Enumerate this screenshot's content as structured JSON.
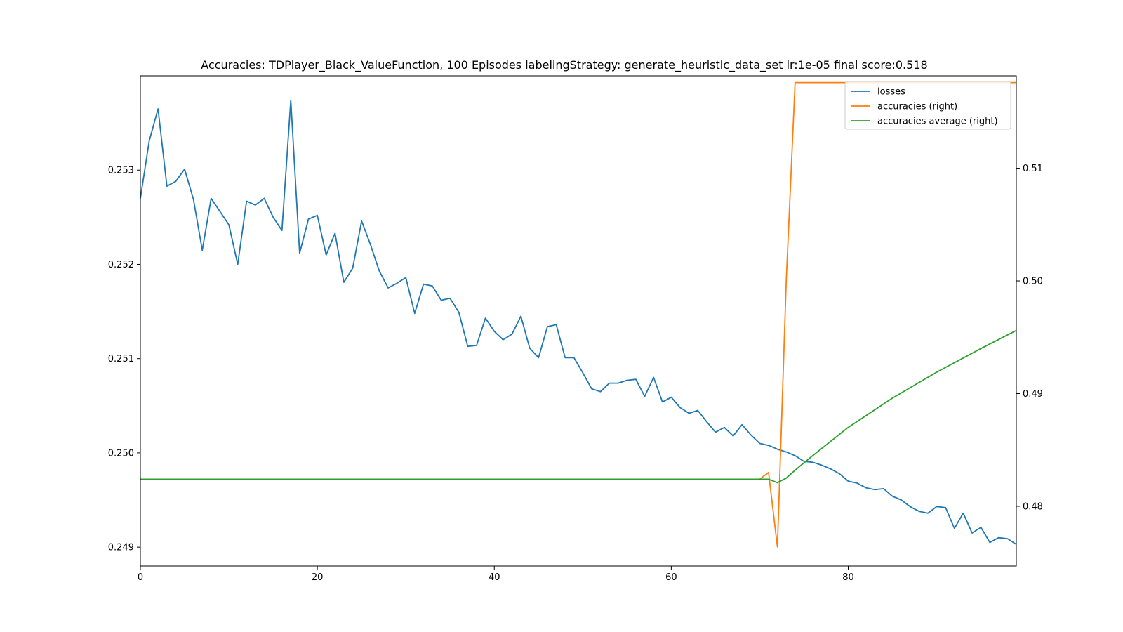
{
  "chart_data": {
    "type": "line",
    "title": "Accuracies: TDPlayer_Black_ValueFunction, 100 Episodes labelingStrategy: generate_heuristic_data_set lr:1e-05 final score:0.518",
    "xlabel": "",
    "ylabel": "",
    "xlim": [
      0,
      99
    ],
    "ylim_left": [
      0.2488,
      0.254
    ],
    "ylim_right": [
      0.4747,
      0.5182
    ],
    "x_ticks": [
      0,
      20,
      40,
      60,
      80
    ],
    "y_left_ticks": [
      "0.249",
      "0.250",
      "0.251",
      "0.252",
      "0.253"
    ],
    "y_right_ticks": [
      "0.48",
      "0.49",
      "0.50",
      "0.51"
    ],
    "grid": false,
    "legend_position": "upper right",
    "series": [
      {
        "name": "losses",
        "axis": "left",
        "color": "#1f77b4",
        "values": [
          0.2527,
          0.25331,
          0.25365,
          0.25283,
          0.25288,
          0.25301,
          0.25269,
          0.25215,
          0.2527,
          0.25256,
          0.25242,
          0.252,
          0.25267,
          0.25263,
          0.2527,
          0.2525,
          0.25236,
          0.25374,
          0.25212,
          0.25248,
          0.25252,
          0.2521,
          0.25233,
          0.25181,
          0.25196,
          0.25246,
          0.25221,
          0.25193,
          0.25175,
          0.2518,
          0.25186,
          0.25148,
          0.25179,
          0.25177,
          0.25162,
          0.25164,
          0.25149,
          0.25113,
          0.25114,
          0.25143,
          0.25129,
          0.2512,
          0.25126,
          0.25145,
          0.25111,
          0.25101,
          0.25134,
          0.25136,
          0.25101,
          0.25101,
          0.25085,
          0.25068,
          0.25065,
          0.25074,
          0.25074,
          0.25077,
          0.25078,
          0.2506,
          0.2508,
          0.25054,
          0.25059,
          0.25048,
          0.25042,
          0.25045,
          0.25033,
          0.25022,
          0.25027,
          0.25018,
          0.2503,
          0.25019,
          0.2501,
          0.25008,
          0.25004,
          0.25001,
          0.24997,
          0.24991,
          0.2499,
          0.24987,
          0.24983,
          0.24978,
          0.2497,
          0.24968,
          0.24963,
          0.24961,
          0.24962,
          0.24954,
          0.2495,
          0.24943,
          0.24938,
          0.24936,
          0.24943,
          0.24942,
          0.2492,
          0.24936,
          0.24915,
          0.24921,
          0.24905,
          0.2491,
          0.24909,
          0.24903
        ]
      },
      {
        "name": "accuracies (right)",
        "axis": "right",
        "color": "#ff7f0e",
        "x": [
          0,
          70,
          71,
          72,
          73,
          74,
          99
        ],
        "values": [
          0.4824,
          0.4824,
          0.483,
          0.4764,
          0.5,
          0.5176,
          0.5176
        ]
      },
      {
        "name": "accuracies average (right)",
        "axis": "right",
        "color": "#2ca02c",
        "x": [
          0,
          70,
          71,
          72,
          73,
          74,
          76,
          80,
          85,
          90,
          95,
          99
        ],
        "values": [
          0.4824,
          0.4824,
          0.4824,
          0.4821,
          0.4825,
          0.4832,
          0.4845,
          0.487,
          0.4896,
          0.4919,
          0.494,
          0.4956
        ]
      }
    ]
  }
}
